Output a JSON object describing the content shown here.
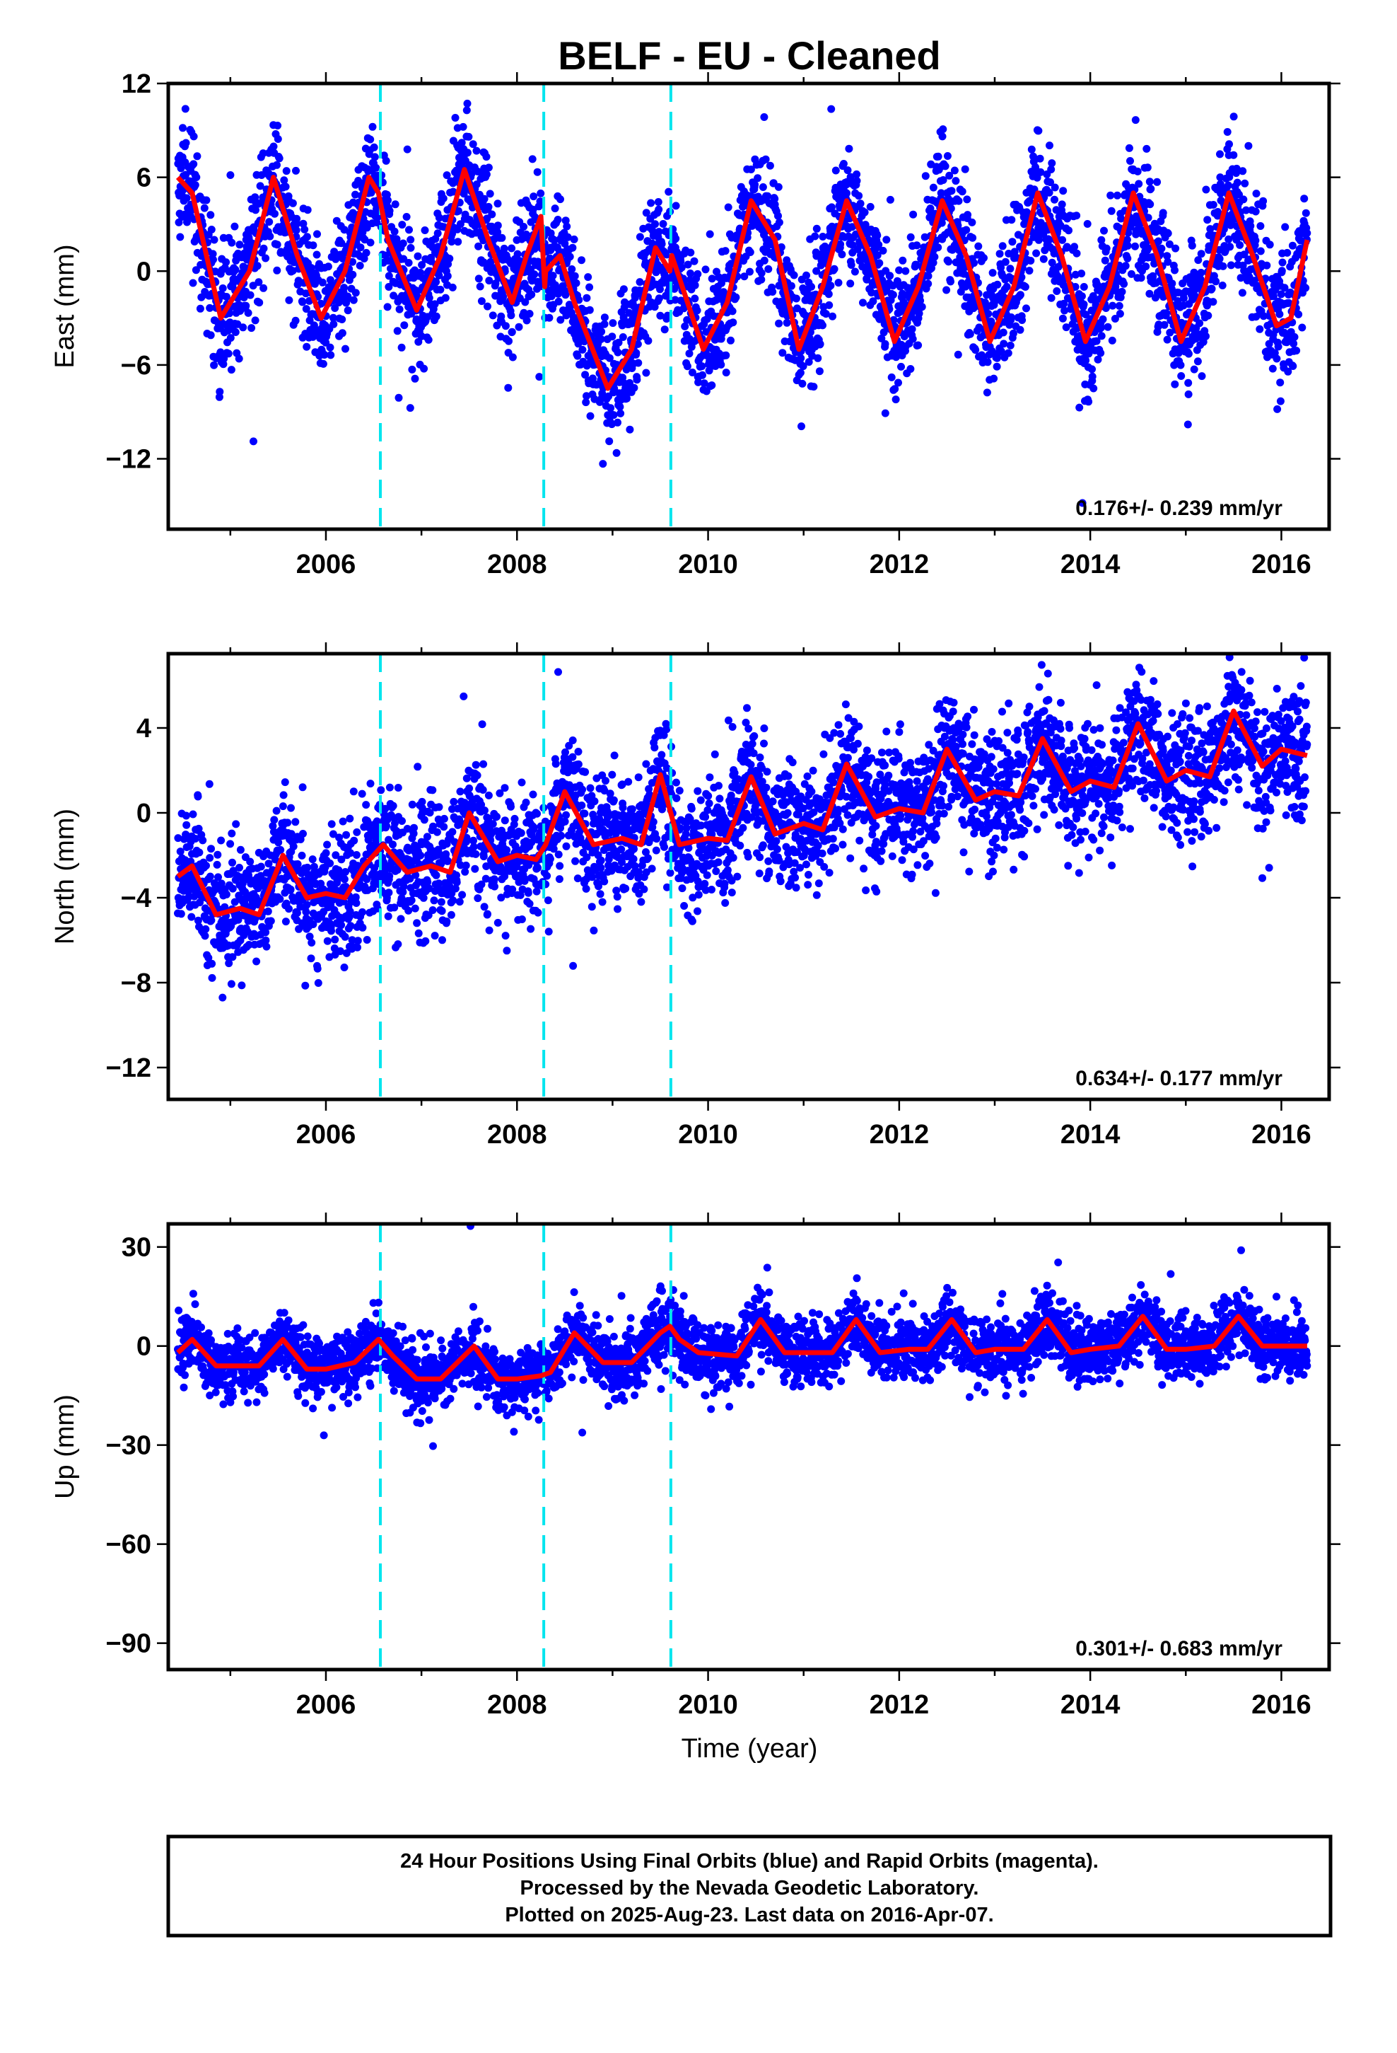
{
  "figure": {
    "title": "BELF  - EU - Cleaned",
    "xlabel": "Time (year)",
    "caption_lines": [
      "24 Hour Positions Using Final Orbits (blue) and Rapid Orbits (magenta).",
      "Processed by the Nevada Geodetic Laboratory.",
      "Plotted on 2025-Aug-23. Last data on 2016-Apr-07."
    ],
    "colors": {
      "points": "#0000ff",
      "model": "#ff0000",
      "offsets": "#00e5ee"
    }
  },
  "chart_data": [
    {
      "type": "scatter",
      "ylabel": "East (mm)",
      "xlim": [
        2004.35,
        2016.5
      ],
      "ylim": [
        -16.5,
        12
      ],
      "xticks": [
        2006,
        2008,
        2010,
        2012,
        2014,
        2016
      ],
      "yticks": [
        -12,
        -6,
        0,
        6,
        12
      ],
      "ytick_labels": [
        "−12",
        "−6",
        "0",
        "6",
        "12"
      ],
      "rate_label": "0.176+/- 0.239 mm/yr",
      "offsets": [
        2006.57,
        2008.28,
        2009.61
      ],
      "data_start": 2004.45,
      "data_end": 2016.27,
      "series": [
        {
          "model": "fit",
          "x": [
            2004.45,
            2004.6,
            2004.9,
            2005.2,
            2005.45,
            2005.7,
            2005.95,
            2006.2,
            2006.45,
            2006.55,
            2006.65,
            2006.95,
            2007.2,
            2007.45,
            2007.7,
            2007.95,
            2008.1,
            2008.25,
            2008.29,
            2008.3,
            2008.45,
            2008.6,
            2008.95,
            2009.2,
            2009.45,
            2009.6,
            2009.62,
            2009.95,
            2010.2,
            2010.45,
            2010.7,
            2010.95,
            2011.2,
            2011.45,
            2011.7,
            2011.95,
            2012.2,
            2012.45,
            2012.7,
            2012.95,
            2013.2,
            2013.45,
            2013.7,
            2013.95,
            2014.2,
            2014.45,
            2014.7,
            2014.95,
            2015.2,
            2015.45,
            2015.7,
            2015.95,
            2016.1,
            2016.27
          ],
          "y": [
            6,
            5,
            -3,
            0,
            6,
            1,
            -3,
            0,
            6,
            5,
            2,
            -2.5,
            1,
            6.5,
            2,
            -2,
            1,
            3.5,
            -1,
            0,
            1,
            -2,
            -7.5,
            -5,
            1.5,
            0,
            1,
            -5,
            -2,
            4.5,
            2,
            -5,
            -1,
            4.5,
            1,
            -4.5,
            -1,
            4.5,
            1,
            -4.5,
            -1,
            5,
            1,
            -4.5,
            -1,
            5,
            1,
            -4.5,
            -1,
            5,
            1,
            -3.5,
            -3,
            2
          ]
        }
      ]
    },
    {
      "type": "scatter",
      "ylabel": "North (mm)",
      "xlim": [
        2004.35,
        2016.5
      ],
      "ylim": [
        -13.5,
        7.5
      ],
      "xticks": [
        2006,
        2008,
        2010,
        2012,
        2014,
        2016
      ],
      "yticks": [
        -12,
        -8,
        -4,
        0,
        4
      ],
      "ytick_labels": [
        "−12",
        "−8",
        "−4",
        "0",
        "4"
      ],
      "rate_label": "0.634+/- 0.177 mm/yr",
      "offsets": [
        2006.57,
        2008.28,
        2009.61
      ],
      "data_start": 2004.45,
      "data_end": 2016.27,
      "series": [
        {
          "model": "fit",
          "x": [
            2004.45,
            2004.6,
            2004.85,
            2005.1,
            2005.3,
            2005.55,
            2005.8,
            2006.0,
            2006.2,
            2006.4,
            2006.6,
            2006.85,
            2007.1,
            2007.3,
            2007.5,
            2007.8,
            2008.0,
            2008.2,
            2008.3,
            2008.5,
            2008.8,
            2009.1,
            2009.3,
            2009.5,
            2009.7,
            2010.0,
            2010.2,
            2010.45,
            2010.7,
            2011.0,
            2011.2,
            2011.45,
            2011.75,
            2012.0,
            2012.25,
            2012.5,
            2012.8,
            2013.0,
            2013.25,
            2013.5,
            2013.8,
            2014.0,
            2014.25,
            2014.5,
            2014.8,
            2015.0,
            2015.25,
            2015.5,
            2015.8,
            2016.0,
            2016.27
          ],
          "y": [
            -3,
            -2.5,
            -4.8,
            -4.5,
            -4.8,
            -2,
            -4,
            -3.8,
            -4,
            -2.5,
            -1.5,
            -2.8,
            -2.5,
            -2.8,
            0,
            -2.3,
            -2,
            -2.2,
            -1.5,
            1,
            -1.5,
            -1.2,
            -1.5,
            1.8,
            -1.5,
            -1.2,
            -1.3,
            1.7,
            -1,
            -0.5,
            -0.8,
            2.3,
            -0.2,
            0.2,
            0,
            3,
            0.6,
            1,
            0.8,
            3.5,
            1,
            1.5,
            1.2,
            4.2,
            1.5,
            2,
            1.7,
            4.8,
            2.2,
            3,
            2.7
          ]
        }
      ]
    },
    {
      "type": "scatter",
      "ylabel": "Up (mm)",
      "xlim": [
        2004.35,
        2016.5
      ],
      "ylim": [
        -98,
        37
      ],
      "xticks": [
        2006,
        2008,
        2010,
        2012,
        2014,
        2016
      ],
      "yticks": [
        -90,
        -60,
        -30,
        0,
        30
      ],
      "ytick_labels": [
        "−90",
        "−60",
        "−30",
        "0",
        "30"
      ],
      "rate_label": "0.301+/- 0.683 mm/yr",
      "offsets": [
        2006.57,
        2008.28,
        2009.61
      ],
      "data_start": 2004.45,
      "data_end": 2016.27,
      "series": [
        {
          "model": "fit",
          "x": [
            2004.45,
            2004.6,
            2004.85,
            2005.1,
            2005.3,
            2005.55,
            2005.8,
            2006.0,
            2006.3,
            2006.55,
            2006.7,
            2006.95,
            2007.2,
            2007.55,
            2007.8,
            2008.0,
            2008.25,
            2008.35,
            2008.6,
            2008.9,
            2009.2,
            2009.5,
            2009.6,
            2009.7,
            2009.9,
            2010.3,
            2010.55,
            2010.8,
            2011.1,
            2011.3,
            2011.55,
            2011.8,
            2012.1,
            2012.3,
            2012.55,
            2012.8,
            2013.0,
            2013.3,
            2013.55,
            2013.8,
            2014.0,
            2014.3,
            2014.55,
            2014.8,
            2015.0,
            2015.3,
            2015.55,
            2015.8,
            2016.0,
            2016.27
          ],
          "y": [
            -2,
            2,
            -6,
            -6,
            -6,
            2,
            -7,
            -7,
            -5,
            2,
            -3,
            -10,
            -10,
            0,
            -10,
            -10,
            -9,
            -8,
            4,
            -5,
            -5,
            4,
            6,
            2,
            -2,
            -3,
            8,
            -2,
            -2,
            -2,
            8,
            -2,
            -1,
            -1,
            8,
            -2,
            -1,
            -1,
            8,
            -2,
            -1,
            0,
            9,
            -1,
            -1,
            0,
            9,
            0,
            0,
            0
          ]
        }
      ]
    }
  ]
}
